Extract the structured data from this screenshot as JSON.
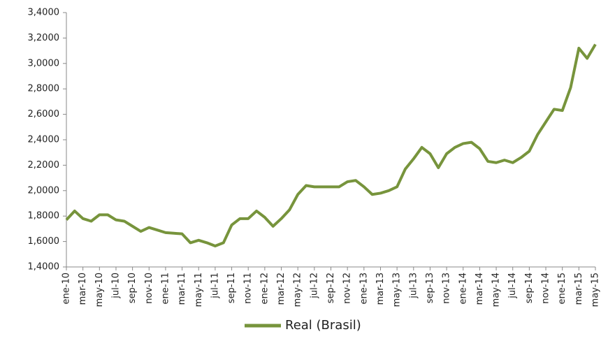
{
  "chart_data": {
    "type": "line",
    "categories": [
      "ene-10",
      null,
      "mar-10",
      null,
      "may-10",
      null,
      "jul-10",
      null,
      "sep-10",
      null,
      "nov-10",
      null,
      "ene-11",
      null,
      "mar-11",
      null,
      "may-11",
      null,
      "jul-11",
      null,
      "sep-11",
      null,
      "nov-11",
      null,
      "ene-12",
      null,
      "mar-12",
      null,
      "may-12",
      null,
      "jul-12",
      null,
      "sep-12",
      null,
      "nov-12",
      null,
      "ene-13",
      null,
      "mar-13",
      null,
      "may-13",
      null,
      "jul-13",
      null,
      "sep-13",
      null,
      "nov-13",
      null,
      "ene-14",
      null,
      "mar-14",
      null,
      "may-14",
      null,
      "jul-14",
      null,
      "sep-14",
      null,
      "nov-14",
      null,
      "ene-15",
      null,
      "mar-15",
      null,
      "may-15"
    ],
    "series": [
      {
        "name": "Real (Brasil)",
        "color": "#77943c",
        "values": [
          1.77,
          1.84,
          1.78,
          1.76,
          1.81,
          1.81,
          1.77,
          1.76,
          1.72,
          1.68,
          1.71,
          1.69,
          1.67,
          1.665,
          1.66,
          1.59,
          1.61,
          1.59,
          1.565,
          1.59,
          1.73,
          1.78,
          1.78,
          1.84,
          1.79,
          1.72,
          1.78,
          1.85,
          1.97,
          2.04,
          2.03,
          2.03,
          2.03,
          2.03,
          2.07,
          2.08,
          2.03,
          1.97,
          1.98,
          2.0,
          2.03,
          2.17,
          2.25,
          2.34,
          2.29,
          2.18,
          2.29,
          2.34,
          2.37,
          2.38,
          2.33,
          2.23,
          2.22,
          2.24,
          2.22,
          2.26,
          2.31,
          2.44,
          2.54,
          2.64,
          2.63,
          2.81,
          3.12,
          3.04,
          3.15
        ]
      }
    ],
    "ylim": [
      1.4,
      3.4
    ],
    "yticks": [
      {
        "value": 1.4,
        "label": "1,4000"
      },
      {
        "value": 1.6,
        "label": "1,6000"
      },
      {
        "value": 1.8,
        "label": "1,8000"
      },
      {
        "value": 2.0,
        "label": "2,0000"
      },
      {
        "value": 2.2,
        "label": "2,2000"
      },
      {
        "value": 2.4,
        "label": "2,4000"
      },
      {
        "value": 2.6,
        "label": "2,6000"
      },
      {
        "value": 2.8,
        "label": "2,8000"
      },
      {
        "value": 3.0,
        "label": "3,0000"
      },
      {
        "value": 3.2,
        "label": "3,2000"
      },
      {
        "value": 3.4,
        "label": "3,4000"
      }
    ],
    "grid": false,
    "legend": "bottom"
  }
}
